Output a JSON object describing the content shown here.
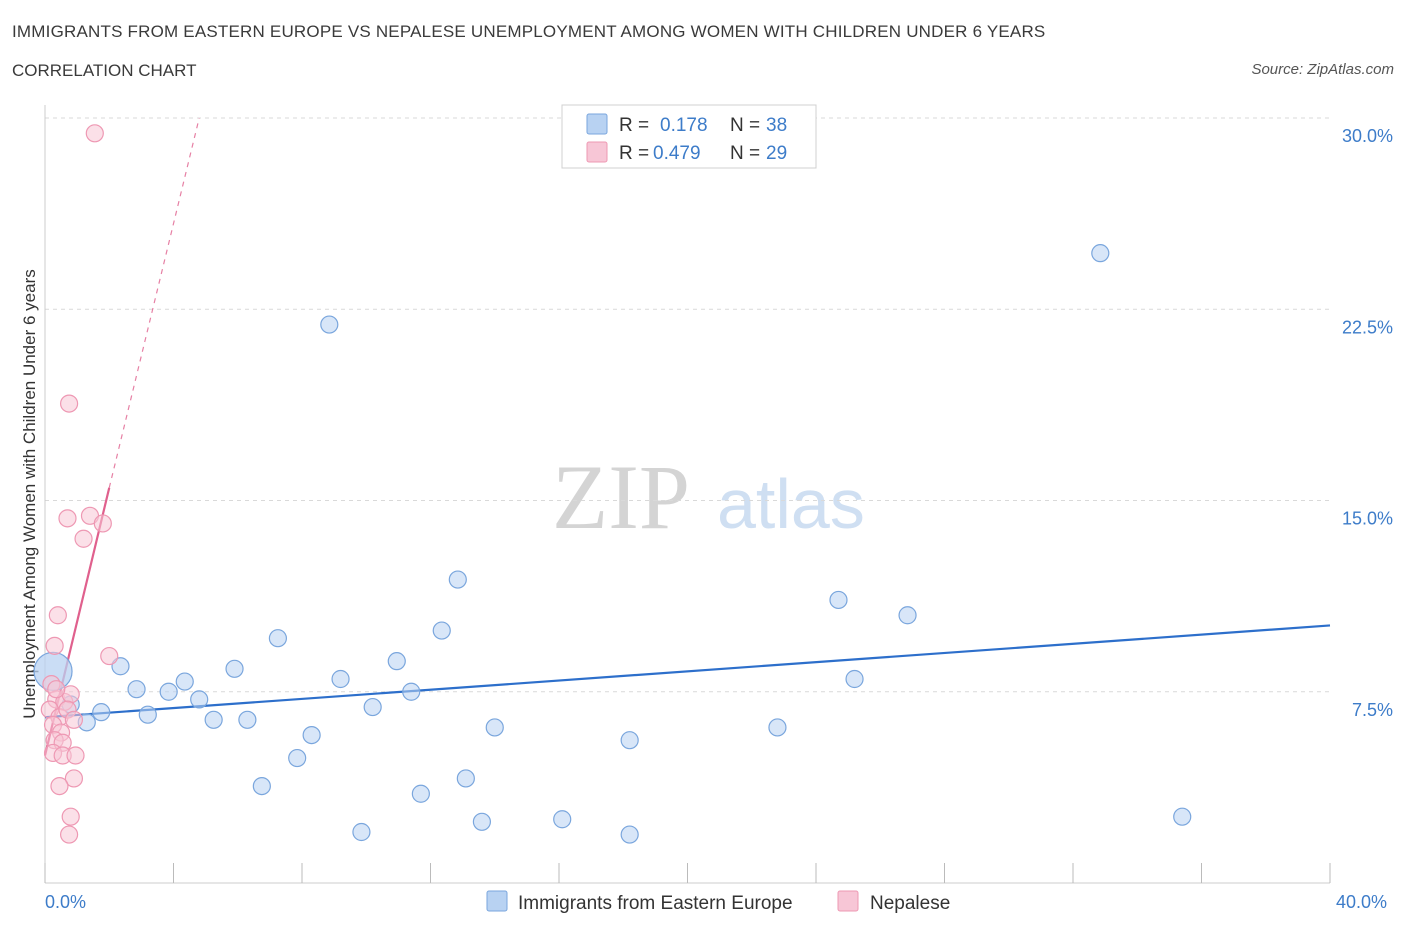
{
  "header": {
    "title": "IMMIGRANTS FROM EASTERN EUROPE VS NEPALESE UNEMPLOYMENT AMONG WOMEN WITH CHILDREN UNDER 6 YEARS",
    "subtitle": "CORRELATION CHART",
    "source": "Source: ZipAtlas.com"
  },
  "watermark": {
    "zip": "ZIP",
    "atlas": "atlas"
  },
  "colors": {
    "blue_fill": "#b8d2f2",
    "blue_stroke": "#7aa6dd",
    "blue_line": "#2d6fcb",
    "pink_fill": "#f7c6d6",
    "pink_stroke": "#ee98b3",
    "pink_line": "#e0608d",
    "grid": "#d9d9d9",
    "tick_text": "#3d7cc9"
  },
  "chart_data": {
    "type": "scatter",
    "title": "IMMIGRANTS FROM EASTERN EUROPE VS NEPALESE UNEMPLOYMENT AMONG WOMEN WITH CHILDREN UNDER 6 YEARS",
    "xlabel": "",
    "ylabel": "Unemployment Among Women with Children Under 6 years",
    "xlim": [
      0,
      40
    ],
    "ylim": [
      0,
      30
    ],
    "x_tick_labels": [
      "0.0%",
      "40.0%"
    ],
    "y_ticks": [
      7.5,
      15,
      22.5,
      30
    ],
    "y_tick_labels": [
      "7.5%",
      "15.0%",
      "22.5%",
      "30.0%"
    ],
    "grid": true,
    "legend_position": "top-center",
    "stats": [
      {
        "r_label": "R =",
        "r_value": "0.178",
        "n_label": "N =",
        "n_value": "38"
      },
      {
        "r_label": "R =",
        "r_value": "0.479",
        "n_label": "N =",
        "n_value": "29"
      }
    ],
    "series": [
      {
        "name": "Immigrants from Eastern Europe",
        "color": "#b8d2f2",
        "trend": {
          "x0": 0,
          "y0": 6.5,
          "x1": 40,
          "y1": 10.1
        },
        "points": [
          {
            "x": 0.25,
            "y": 8.3,
            "big": true
          },
          {
            "x": 0.8,
            "y": 7.0
          },
          {
            "x": 1.3,
            "y": 6.3
          },
          {
            "x": 1.75,
            "y": 6.7
          },
          {
            "x": 2.35,
            "y": 8.5
          },
          {
            "x": 2.85,
            "y": 7.6
          },
          {
            "x": 3.2,
            "y": 6.6
          },
          {
            "x": 3.85,
            "y": 7.5
          },
          {
            "x": 4.35,
            "y": 7.9
          },
          {
            "x": 4.8,
            "y": 7.2
          },
          {
            "x": 5.25,
            "y": 6.4
          },
          {
            "x": 5.9,
            "y": 8.4
          },
          {
            "x": 6.3,
            "y": 6.4
          },
          {
            "x": 6.75,
            "y": 3.8
          },
          {
            "x": 7.25,
            "y": 9.6
          },
          {
            "x": 7.85,
            "y": 4.9
          },
          {
            "x": 8.3,
            "y": 5.8
          },
          {
            "x": 8.85,
            "y": 21.9
          },
          {
            "x": 9.2,
            "y": 8.0
          },
          {
            "x": 9.85,
            "y": 2.0
          },
          {
            "x": 10.2,
            "y": 6.9
          },
          {
            "x": 10.95,
            "y": 8.7
          },
          {
            "x": 11.4,
            "y": 7.5
          },
          {
            "x": 11.7,
            "y": 3.5
          },
          {
            "x": 12.35,
            "y": 9.9
          },
          {
            "x": 12.85,
            "y": 11.9
          },
          {
            "x": 13.1,
            "y": 4.1
          },
          {
            "x": 13.6,
            "y": 2.4
          },
          {
            "x": 14.0,
            "y": 6.1
          },
          {
            "x": 16.1,
            "y": 2.5
          },
          {
            "x": 18.2,
            "y": 5.6
          },
          {
            "x": 18.2,
            "y": 1.9
          },
          {
            "x": 22.8,
            "y": 6.1
          },
          {
            "x": 24.7,
            "y": 11.1
          },
          {
            "x": 25.2,
            "y": 8.0
          },
          {
            "x": 26.85,
            "y": 10.5
          },
          {
            "x": 32.85,
            "y": 24.7
          },
          {
            "x": 35.4,
            "y": 2.6
          }
        ]
      },
      {
        "name": "Nepalese",
        "color": "#f7c6d6",
        "trend": {
          "x0": 0,
          "y0": 5.0,
          "x1": 2.0,
          "y1": 15.5,
          "dash_x1": 4.8,
          "dash_y1": 30.0
        },
        "points": [
          {
            "x": 1.55,
            "y": 29.4
          },
          {
            "x": 0.75,
            "y": 18.8
          },
          {
            "x": 0.7,
            "y": 14.3
          },
          {
            "x": 1.4,
            "y": 14.4
          },
          {
            "x": 1.8,
            "y": 14.1
          },
          {
            "x": 1.2,
            "y": 13.5
          },
          {
            "x": 0.4,
            "y": 10.5
          },
          {
            "x": 0.3,
            "y": 9.3
          },
          {
            "x": 2.0,
            "y": 8.9
          },
          {
            "x": 0.2,
            "y": 7.8
          },
          {
            "x": 0.35,
            "y": 7.2
          },
          {
            "x": 0.6,
            "y": 7.1
          },
          {
            "x": 0.8,
            "y": 7.4
          },
          {
            "x": 0.15,
            "y": 6.8
          },
          {
            "x": 0.45,
            "y": 6.5
          },
          {
            "x": 0.7,
            "y": 6.8
          },
          {
            "x": 0.9,
            "y": 6.4
          },
          {
            "x": 0.25,
            "y": 6.2
          },
          {
            "x": 0.5,
            "y": 5.9
          },
          {
            "x": 0.3,
            "y": 5.6
          },
          {
            "x": 0.55,
            "y": 5.5
          },
          {
            "x": 0.25,
            "y": 5.1
          },
          {
            "x": 0.55,
            "y": 5.0
          },
          {
            "x": 0.95,
            "y": 5.0
          },
          {
            "x": 0.9,
            "y": 4.1
          },
          {
            "x": 0.45,
            "y": 3.8
          },
          {
            "x": 0.8,
            "y": 2.6
          },
          {
            "x": 0.75,
            "y": 1.9
          },
          {
            "x": 0.35,
            "y": 7.6
          }
        ]
      }
    ]
  }
}
